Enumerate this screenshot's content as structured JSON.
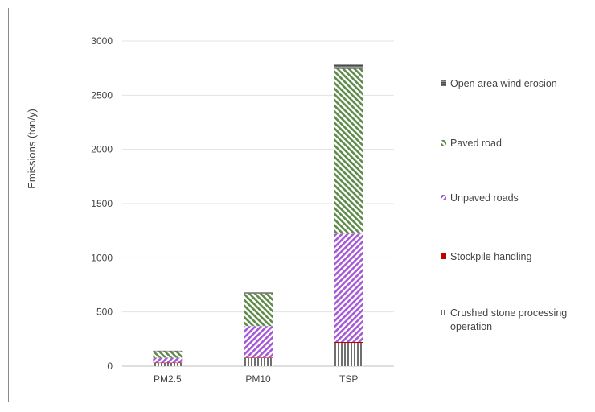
{
  "chart_data": {
    "type": "bar",
    "stacked": true,
    "title": "",
    "xlabel": "",
    "ylabel": "Emissions  (ton/y)",
    "ylim": [
      0,
      3000
    ],
    "yticks": [
      0,
      500,
      1000,
      1500,
      2000,
      2500,
      3000
    ],
    "grid": true,
    "legend_position": "right",
    "categories": [
      "PM2.5",
      "PM10",
      "TSP"
    ],
    "series": [
      {
        "name": "Crushed stone processing operation",
        "values": [
          30,
          75,
          215
        ],
        "color": "#6f6f6f",
        "pattern": "vertical"
      },
      {
        "name": "Stockpile handling",
        "values": [
          3,
          5,
          8
        ],
        "color": "#c00000",
        "pattern": "solid"
      },
      {
        "name": "Unpaved roads",
        "values": [
          45,
          290,
          1000
        ],
        "color": "#a45ad6",
        "pattern": "diagonal-up"
      },
      {
        "name": "Paved road",
        "values": [
          60,
          300,
          1520
        ],
        "color": "#5f8a4a",
        "pattern": "diagonal-down"
      },
      {
        "name": "Open area wind erosion",
        "values": [
          4,
          10,
          45
        ],
        "color": "#595959",
        "pattern": "horizontal"
      }
    ],
    "legend_order": [
      4,
      3,
      2,
      1,
      0
    ]
  }
}
